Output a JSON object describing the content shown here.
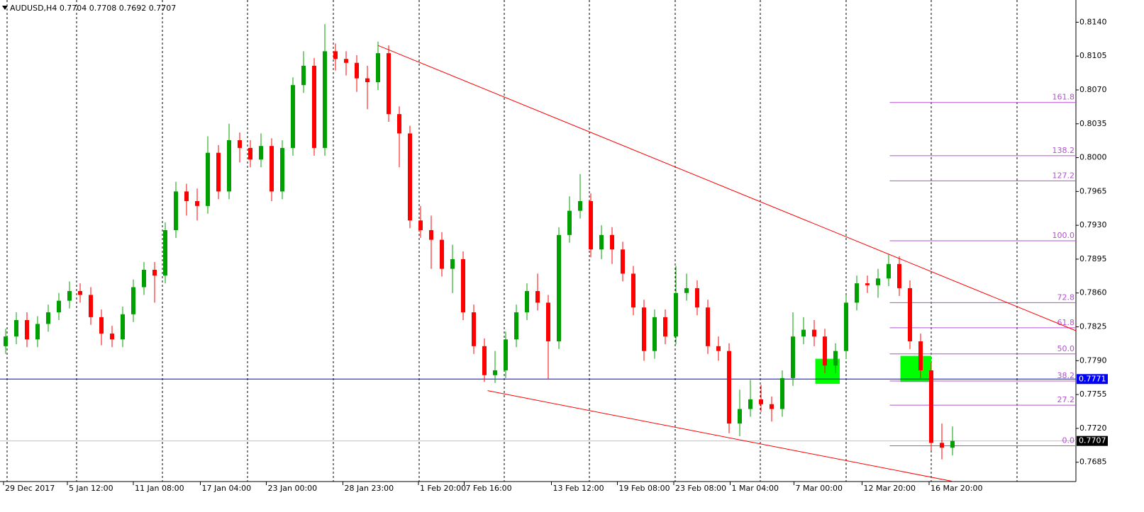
{
  "chart_data": {
    "type": "candlestick",
    "title": "AUDUSD,H4  0.7704 0.7708 0.7692 0.7707",
    "bull_color": "#00a000",
    "bear_color": "#ff0000",
    "open": [
      0.7805,
      0.7815,
      0.7832,
      0.7812,
      0.7828,
      0.784,
      0.7852,
      0.7862,
      0.7858,
      0.7835,
      0.7818,
      0.7812,
      0.7838,
      0.7866,
      0.7884,
      0.7878,
      0.7925,
      0.7965,
      0.7955,
      0.795,
      0.8005,
      0.7965,
      0.8018,
      0.801,
      0.7998,
      0.8012,
      0.7965,
      0.801,
      0.8075,
      0.8095,
      0.801,
      0.811,
      0.8102,
      0.8098,
      0.8082,
      0.8078,
      0.8108,
      0.8045,
      0.8025,
      0.7935,
      0.7925,
      0.7915,
      0.7885,
      0.7895,
      0.784,
      0.7805,
      0.7775,
      0.778,
      0.7812,
      0.784,
      0.7862,
      0.785,
      0.781,
      0.792,
      0.7945,
      0.7955,
      0.7905,
      0.792,
      0.7905,
      0.788,
      0.7845,
      0.78,
      0.7835,
      0.7815,
      0.786,
      0.7865,
      0.7845,
      0.7805,
      0.78,
      0.7725,
      0.774,
      0.775,
      0.7745,
      0.774,
      0.7772,
      0.7815,
      0.7822,
      0.7815,
      0.7785,
      0.78,
      0.785,
      0.787,
      0.7868,
      0.7875,
      0.789,
      0.7865,
      0.781,
      0.778,
      0.7705,
      0.77
    ],
    "high": [
      0.7823,
      0.784,
      0.784,
      0.7836,
      0.7848,
      0.786,
      0.7872,
      0.787,
      0.7866,
      0.7843,
      0.7826,
      0.7846,
      0.7874,
      0.7892,
      0.7892,
      0.7933,
      0.7975,
      0.7973,
      0.7968,
      0.8022,
      0.8013,
      0.8035,
      0.8026,
      0.8018,
      0.8025,
      0.802,
      0.8018,
      0.8083,
      0.811,
      0.8103,
      0.8138,
      0.8118,
      0.811,
      0.8106,
      0.8095,
      0.812,
      0.8116,
      0.8053,
      0.8033,
      0.795,
      0.794,
      0.7923,
      0.791,
      0.7903,
      0.7848,
      0.7813,
      0.78,
      0.782,
      0.7848,
      0.787,
      0.788,
      0.7858,
      0.7928,
      0.796,
      0.7983,
      0.7963,
      0.793,
      0.7928,
      0.7913,
      0.7888,
      0.7853,
      0.7843,
      0.7843,
      0.7888,
      0.788,
      0.7873,
      0.7853,
      0.7815,
      0.7808,
      0.776,
      0.777,
      0.7765,
      0.7753,
      0.778,
      0.784,
      0.7835,
      0.7832,
      0.7823,
      0.7808,
      0.7858,
      0.7878,
      0.7878,
      0.7885,
      0.79,
      0.7898,
      0.7873,
      0.7818,
      0.7788,
      0.7725,
      0.7722
    ],
    "low": [
      0.7797,
      0.7807,
      0.7804,
      0.7804,
      0.782,
      0.7832,
      0.7844,
      0.785,
      0.7827,
      0.7806,
      0.7804,
      0.7804,
      0.783,
      0.7858,
      0.785,
      0.787,
      0.7917,
      0.794,
      0.7935,
      0.7942,
      0.7957,
      0.7957,
      0.7995,
      0.799,
      0.799,
      0.7955,
      0.7957,
      0.8002,
      0.8067,
      0.8002,
      0.8002,
      0.809,
      0.8085,
      0.8068,
      0.805,
      0.807,
      0.8037,
      0.799,
      0.7927,
      0.7917,
      0.7885,
      0.7877,
      0.786,
      0.7832,
      0.7797,
      0.7768,
      0.7767,
      0.7772,
      0.7804,
      0.7832,
      0.7842,
      0.7771,
      0.7802,
      0.7912,
      0.7937,
      0.7897,
      0.7895,
      0.789,
      0.7872,
      0.7837,
      0.779,
      0.7792,
      0.7807,
      0.7807,
      0.7852,
      0.7837,
      0.7797,
      0.779,
      0.7715,
      0.7712,
      0.7732,
      0.7737,
      0.7727,
      0.7732,
      0.7764,
      0.7807,
      0.7805,
      0.7777,
      0.7777,
      0.7792,
      0.7842,
      0.786,
      0.7855,
      0.7867,
      0.7857,
      0.7802,
      0.7772,
      0.7697,
      0.7688,
      0.7692
    ],
    "close": [
      0.7815,
      0.7832,
      0.7812,
      0.7828,
      0.784,
      0.7852,
      0.7862,
      0.7858,
      0.7835,
      0.7818,
      0.7812,
      0.7838,
      0.7866,
      0.7884,
      0.7878,
      0.7925,
      0.7965,
      0.7955,
      0.795,
      0.8005,
      0.7965,
      0.8018,
      0.801,
      0.7998,
      0.8012,
      0.7965,
      0.801,
      0.8075,
      0.8095,
      0.801,
      0.811,
      0.8102,
      0.8098,
      0.8082,
      0.8078,
      0.8108,
      0.8045,
      0.8025,
      0.7935,
      0.7925,
      0.7915,
      0.7885,
      0.7895,
      0.784,
      0.7805,
      0.7775,
      0.778,
      0.7812,
      0.784,
      0.7862,
      0.785,
      0.781,
      0.792,
      0.7945,
      0.7955,
      0.7905,
      0.792,
      0.7905,
      0.788,
      0.7845,
      0.78,
      0.7835,
      0.7815,
      0.786,
      0.7865,
      0.7845,
      0.7805,
      0.78,
      0.7725,
      0.774,
      0.775,
      0.7745,
      0.774,
      0.7772,
      0.7815,
      0.7822,
      0.7815,
      0.7785,
      0.78,
      0.785,
      0.787,
      0.7868,
      0.7875,
      0.789,
      0.7865,
      0.781,
      0.778,
      0.7705,
      0.77,
      0.7707
    ],
    "xlim": [
      -0.2,
      100.6
    ],
    "xticks": [
      {
        "value": -0.2,
        "label": "29 Dec 2017"
      },
      {
        "value": 5.8,
        "label": "5 Jan 12:00"
      },
      {
        "value": 12,
        "label": "11 Jan 08:00"
      },
      {
        "value": 18.3,
        "label": "17 Jan 04:00"
      },
      {
        "value": 24.5,
        "label": "23 Jan 00:00"
      },
      {
        "value": 31.7,
        "label": "28 Jan 23:00"
      },
      {
        "value": 38.8,
        "label": "1 Feb 20:00"
      },
      {
        "value": 43.1,
        "label": "7 Feb 16:00"
      },
      {
        "value": 51.3,
        "label": "13 Feb 12:00"
      },
      {
        "value": 57.5,
        "label": "19 Feb 08:00"
      },
      {
        "value": 62.8,
        "label": "23 Feb 08:00"
      },
      {
        "value": 68.1,
        "label": "1 Mar 04:00"
      },
      {
        "value": 74.1,
        "label": "7 Mar 00:00"
      },
      {
        "value": 80.5,
        "label": "12 Mar 20:00"
      },
      {
        "value": 86.8,
        "label": "16 Mar 20:00"
      }
    ],
    "ylim": [
      0.7665,
      0.8163
    ],
    "yticks": [
      {
        "value": 0.814,
        "label": "0.8140"
      },
      {
        "value": 0.8105,
        "label": "0.8105"
      },
      {
        "value": 0.807,
        "label": "0.8070"
      },
      {
        "value": 0.8035,
        "label": "0.8035"
      },
      {
        "value": 0.8,
        "label": "0.8000"
      },
      {
        "value": 0.7965,
        "label": "0.7965"
      },
      {
        "value": 0.793,
        "label": "0.7930"
      },
      {
        "value": 0.7895,
        "label": "0.7895"
      },
      {
        "value": 0.786,
        "label": "0.7860"
      },
      {
        "value": 0.7825,
        "label": "0.7825"
      },
      {
        "value": 0.779,
        "label": "0.7790"
      },
      {
        "value": 0.7755,
        "label": "0.7755"
      },
      {
        "value": 0.772,
        "label": "0.7720"
      },
      {
        "value": 0.7685,
        "label": "0.7685"
      }
    ],
    "hlines": [
      {
        "value": 0.7771,
        "label": "0.7771",
        "color": "#0000ff",
        "label_bg": "#0000ff"
      },
      {
        "value": 0.7707,
        "label": "0.7707",
        "color": "#c0c0c0",
        "label_bg": "#000000"
      }
    ],
    "trendlines": [
      {
        "from": [
          35,
          0.8116
        ],
        "to": [
          100.6,
          0.7821
        ],
        "color": "#ff0000"
      },
      {
        "from": [
          45.3,
          0.7759
        ],
        "to": [
          89.1,
          0.7665
        ],
        "color": "#ff0000"
      }
    ],
    "zones": [
      {
        "x": [
          76.1,
          78.4
        ],
        "y": [
          0.7792,
          0.7766
        ],
        "color": "#00ff00"
      },
      {
        "x": [
          84.1,
          87
        ],
        "y": [
          0.7795,
          0.7768
        ],
        "color": "#00ff00"
      }
    ],
    "fibonacci": {
      "color": "#b450d2",
      "start_index": 83.1,
      "levels": [
        {
          "value": 0.8057,
          "label": "161.8"
        },
        {
          "value": 0.8002,
          "label": "138.2"
        },
        {
          "value": 0.7976,
          "label": "127.2"
        },
        {
          "value": 0.7914,
          "label": "100.0"
        },
        {
          "value": 0.785,
          "label": "72.8"
        },
        {
          "value": 0.7824,
          "label": "61.8"
        },
        {
          "value": 0.7797,
          "label": "50.0"
        },
        {
          "value": 0.7769,
          "label": "38.2"
        },
        {
          "value": 0.7744,
          "label": "27.2"
        },
        {
          "value": 0.7702,
          "label": "0.0"
        }
      ]
    }
  }
}
